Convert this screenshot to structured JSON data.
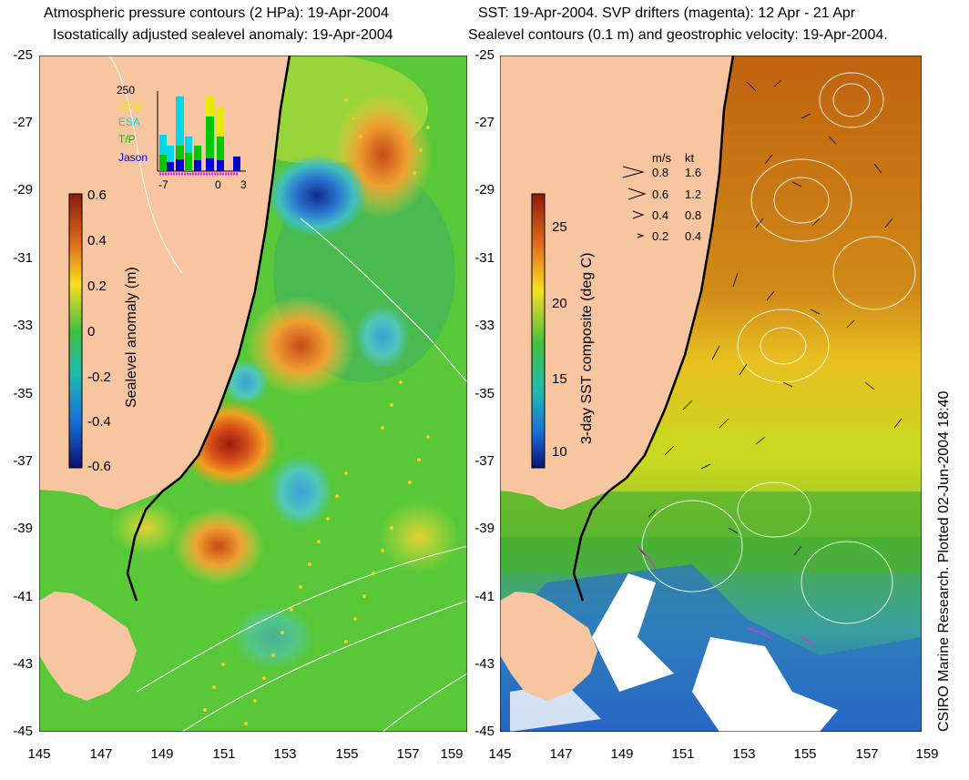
{
  "left_panel": {
    "title_line1": "Atmospheric pressure contours (2 HPa): 19-Apr-2004",
    "title_line2": "Isostatically adjusted sealevel anomaly: 19-Apr-2004",
    "y_ticks": [
      "-25",
      "-27",
      "-29",
      "-31",
      "-33",
      "-35",
      "-37",
      "-39",
      "-41",
      "-43",
      "-45"
    ],
    "x_ticks": [
      "145",
      "147",
      "149",
      "151",
      "153",
      "155",
      "157",
      "159"
    ],
    "colorbar": {
      "label": "Sealevel anomaly (m)",
      "ticks": [
        "0.6",
        "0.4",
        "0.2",
        "0",
        "-0.2",
        "-0.4",
        "-0.6"
      ]
    },
    "histogram": {
      "ymax_label": "250",
      "legend": [
        {
          "name": "GFO",
          "color": "#e8e800"
        },
        {
          "name": "ESA",
          "color": "#00d8e8"
        },
        {
          "name": "T/P",
          "color": "#00c800"
        },
        {
          "name": "Jason",
          "color": "#0000d0"
        }
      ],
      "x_ticks": [
        "-7",
        "0",
        "3"
      ]
    }
  },
  "right_panel": {
    "title_line1": "SST: 19-Apr-2004. SVP drifters (magenta): 12 Apr - 21 Apr",
    "title_line2": "Sealevel contours (0.1 m) and geostrophic velocity: 19-Apr-2004.",
    "y_ticks": [
      "-25",
      "-27",
      "-29",
      "-31",
      "-33",
      "-35",
      "-37",
      "-39",
      "-41",
      "-43",
      "-45"
    ],
    "x_ticks": [
      "145",
      "147",
      "149",
      "151",
      "153",
      "155",
      "157",
      "159"
    ],
    "colorbar": {
      "label": "3-day SST composite (deg C)",
      "ticks": [
        "25",
        "20",
        "15",
        "10"
      ]
    },
    "velocity_legend": {
      "header_ms": "m/s",
      "header_kt": "kt",
      "rows": [
        {
          "ms": "0.8",
          "kt": "1.6"
        },
        {
          "ms": "0.6",
          "kt": "1.2"
        },
        {
          "ms": "0.4",
          "kt": "0.8"
        },
        {
          "ms": "0.2",
          "kt": "0.4"
        }
      ]
    }
  },
  "credit": "CSIRO Marine Research. Plotted 02-Jun-2004 18:40",
  "colors": {
    "land": "#f7c59f",
    "coast_line": "#000000"
  }
}
